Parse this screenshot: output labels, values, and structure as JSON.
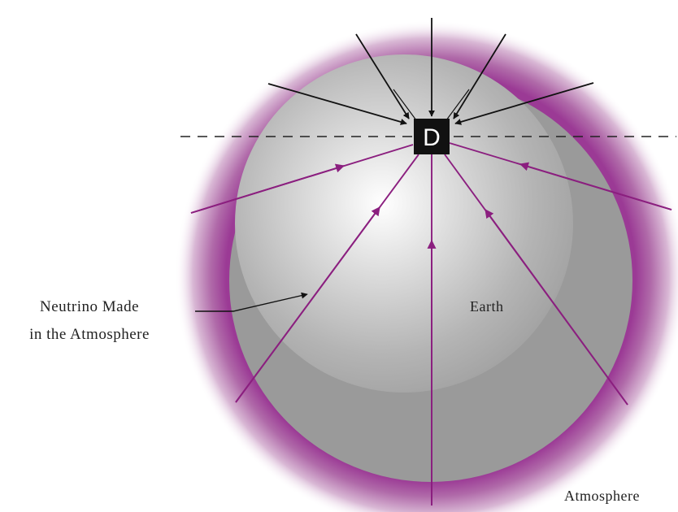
{
  "detector": {
    "label": "D"
  },
  "labels": {
    "earth": "Earth",
    "atmosphere": "Atmosphere",
    "neutrino_line1": "Neutrino Made",
    "neutrino_line2": "in the Atmosphere"
  },
  "colors": {
    "downward_arrows": "#111111",
    "upward_arrows": "#8b1f7f",
    "atmosphere_glow": "#9b3a95",
    "horizon_line": "#222222",
    "detector_box": "#111111"
  }
}
